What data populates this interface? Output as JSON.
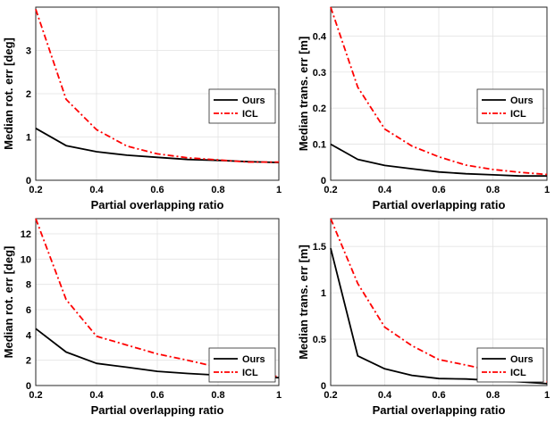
{
  "chart_data": [
    {
      "type": "line",
      "xlabel": "Partial overlapping ratio",
      "ylabel": "Median rot. err [deg]",
      "xlim": [
        0.2,
        1
      ],
      "ylim": [
        0,
        4
      ],
      "xticks": [
        "0.2",
        "0.4",
        "0.6",
        "0.8",
        "1"
      ],
      "yticks": [
        "0",
        "1",
        "2",
        "3"
      ],
      "grid": true,
      "legend_position": "right-middle",
      "x": [
        0.2,
        0.3,
        0.4,
        0.5,
        0.6,
        0.7,
        0.8,
        0.9,
        1.0
      ],
      "series": [
        {
          "name": "Ours",
          "color": "#000000",
          "dash": "solid",
          "values": [
            1.2,
            0.8,
            0.66,
            0.58,
            0.53,
            0.48,
            0.46,
            0.43,
            0.41
          ]
        },
        {
          "name": "ICL",
          "color": "#ff0000",
          "dash": "dashdot",
          "values": [
            3.95,
            1.87,
            1.17,
            0.79,
            0.61,
            0.52,
            0.47,
            0.42,
            0.42
          ]
        }
      ]
    },
    {
      "type": "line",
      "xlabel": "Partial overlapping ratio",
      "ylabel": "Median trans. err [m]",
      "xlim": [
        0.2,
        1
      ],
      "ylim": [
        0,
        0.48
      ],
      "xticks": [
        "0.2",
        "0.4",
        "0.6",
        "0.8",
        "1"
      ],
      "yticks": [
        "0",
        "0.1",
        "0.2",
        "0.3",
        "0.4"
      ],
      "grid": true,
      "legend_position": "right-middle",
      "x": [
        0.2,
        0.3,
        0.4,
        0.5,
        0.6,
        0.7,
        0.8,
        0.9,
        1.0
      ],
      "series": [
        {
          "name": "Ours",
          "color": "#000000",
          "dash": "solid",
          "values": [
            0.1,
            0.058,
            0.041,
            0.032,
            0.023,
            0.018,
            0.015,
            0.012,
            0.012
          ]
        },
        {
          "name": "ICL",
          "color": "#ff0000",
          "dash": "dashdot",
          "values": [
            0.48,
            0.258,
            0.142,
            0.095,
            0.065,
            0.042,
            0.03,
            0.022,
            0.016
          ]
        }
      ]
    },
    {
      "type": "line",
      "xlabel": "Partial overlapping ratio",
      "ylabel": "Median rot. err [deg]",
      "xlim": [
        0.2,
        1
      ],
      "ylim": [
        0,
        13.2
      ],
      "xticks": [
        "0.2",
        "0.4",
        "0.6",
        "0.8",
        "1"
      ],
      "yticks": [
        "0",
        "2",
        "4",
        "6",
        "8",
        "10",
        "12"
      ],
      "grid": true,
      "legend_position": "bottom-right",
      "x": [
        0.2,
        0.3,
        0.4,
        0.5,
        0.6,
        0.7,
        0.8,
        0.9,
        1.0
      ],
      "series": [
        {
          "name": "Ours",
          "color": "#000000",
          "dash": "solid",
          "values": [
            4.5,
            2.65,
            1.75,
            1.45,
            1.12,
            0.95,
            0.82,
            0.7,
            0.62
          ]
        },
        {
          "name": "ICL",
          "color": "#ff0000",
          "dash": "dashdot",
          "values": [
            13.2,
            6.8,
            3.9,
            3.2,
            2.5,
            2.0,
            1.45,
            1.0,
            0.7
          ]
        }
      ]
    },
    {
      "type": "line",
      "xlabel": "Partial overlapping ratio",
      "ylabel": "Median trans. err [m]",
      "xlim": [
        0.2,
        1
      ],
      "ylim": [
        0,
        1.8
      ],
      "xticks": [
        "0.2",
        "0.4",
        "0.6",
        "0.8",
        "1"
      ],
      "yticks": [
        "0",
        "0.5",
        "1",
        "1.5"
      ],
      "grid": true,
      "legend_position": "bottom-right",
      "x": [
        0.2,
        0.3,
        0.4,
        0.5,
        0.6,
        0.7,
        0.8,
        0.9,
        1.0
      ],
      "series": [
        {
          "name": "Ours",
          "color": "#000000",
          "dash": "solid",
          "values": [
            1.48,
            0.32,
            0.18,
            0.11,
            0.075,
            0.07,
            0.055,
            0.04,
            0.02
          ]
        },
        {
          "name": "ICL",
          "color": "#ff0000",
          "dash": "dashdot",
          "values": [
            1.8,
            1.1,
            0.63,
            0.43,
            0.28,
            0.22,
            0.16,
            0.08,
            0.04
          ]
        }
      ]
    }
  ]
}
